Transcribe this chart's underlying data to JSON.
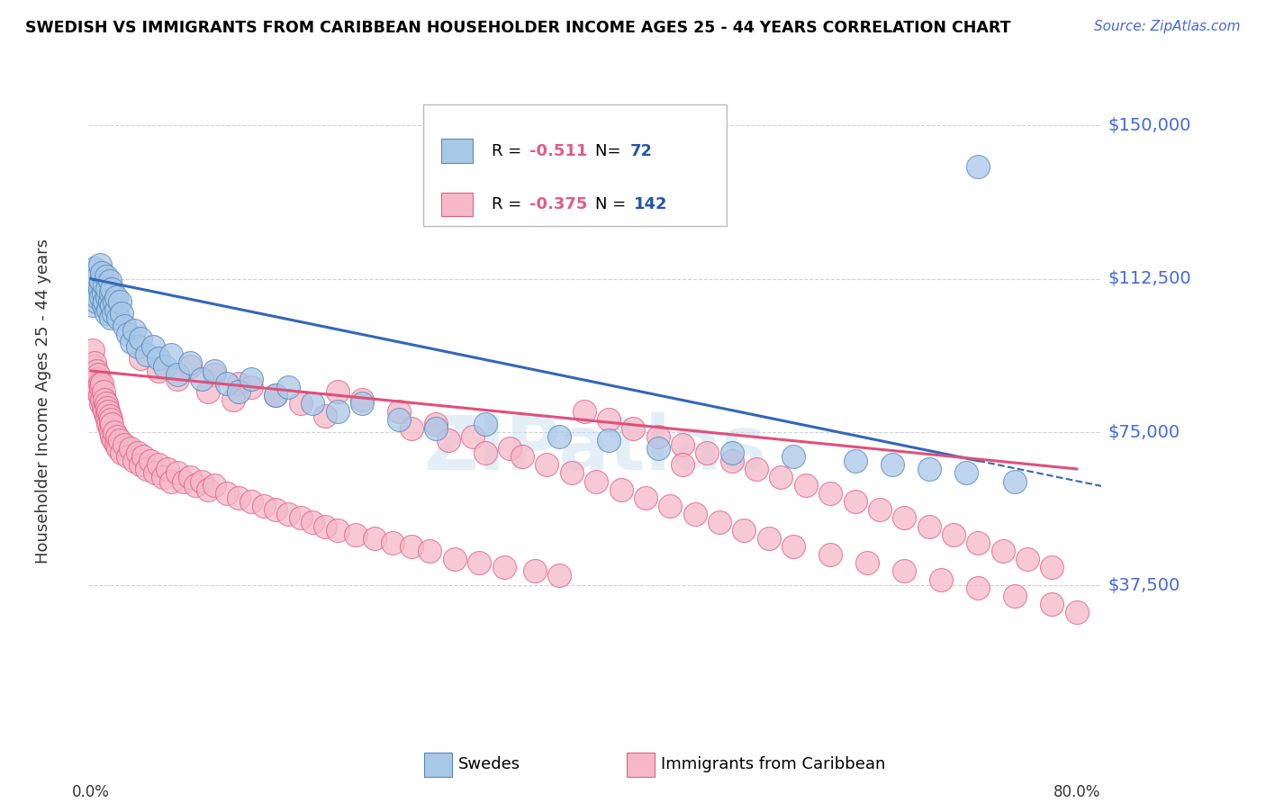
{
  "title": "SWEDISH VS IMMIGRANTS FROM CARIBBEAN HOUSEHOLDER INCOME AGES 25 - 44 YEARS CORRELATION CHART",
  "source": "Source: ZipAtlas.com",
  "ylabel": "Householder Income Ages 25 - 44 years",
  "yticks": [
    37500,
    75000,
    112500,
    150000
  ],
  "ytick_labels": [
    "$37,500",
    "$75,000",
    "$112,500",
    "$150,000"
  ],
  "ylim": [
    0,
    165000
  ],
  "xlim": [
    -0.002,
    0.82
  ],
  "xmin_pct": "0.0%",
  "xmax_pct": "80.0%",
  "swedes_color": "#a8c8e8",
  "swedes_edge_color": "#5588bb",
  "caribbean_color": "#f5b8c8",
  "caribbean_edge_color": "#e06080",
  "trend_swede_color": "#3366bb",
  "trend_caribbean_color": "#e0507a",
  "R_swede": "-0.511",
  "N_swede": "72",
  "R_caribbean": "-0.375",
  "N_caribbean": "142",
  "legend_R_color": "#e05a8a",
  "legend_N_color": "#2255aa",
  "grid_color": "#d0d0d0",
  "ytick_color": "#4169e1",
  "watermark": "ZIPatlas",
  "watermark_color": "#c8dff0",
  "swedes_x": [
    0.001,
    0.002,
    0.003,
    0.003,
    0.004,
    0.005,
    0.005,
    0.006,
    0.007,
    0.007,
    0.008,
    0.008,
    0.009,
    0.01,
    0.01,
    0.011,
    0.011,
    0.012,
    0.012,
    0.013,
    0.013,
    0.014,
    0.015,
    0.015,
    0.016,
    0.016,
    0.017,
    0.017,
    0.018,
    0.019,
    0.02,
    0.02,
    0.022,
    0.023,
    0.025,
    0.027,
    0.03,
    0.033,
    0.035,
    0.038,
    0.04,
    0.045,
    0.05,
    0.055,
    0.06,
    0.065,
    0.07,
    0.08,
    0.09,
    0.1,
    0.11,
    0.12,
    0.13,
    0.15,
    0.16,
    0.18,
    0.2,
    0.22,
    0.25,
    0.28,
    0.32,
    0.38,
    0.42,
    0.46,
    0.52,
    0.57,
    0.62,
    0.65,
    0.68,
    0.71,
    0.75,
    0.72
  ],
  "swedes_y": [
    106000,
    112000,
    109000,
    115000,
    107000,
    111000,
    108000,
    113000,
    110000,
    116000,
    108000,
    112000,
    114000,
    109000,
    106000,
    111000,
    107000,
    113000,
    104000,
    108000,
    110000,
    105000,
    112000,
    107000,
    109000,
    103000,
    106000,
    110000,
    104000,
    107000,
    105000,
    108000,
    103000,
    107000,
    104000,
    101000,
    99000,
    97000,
    100000,
    96000,
    98000,
    94000,
    96000,
    93000,
    91000,
    94000,
    89000,
    92000,
    88000,
    90000,
    87000,
    85000,
    88000,
    84000,
    86000,
    82000,
    80000,
    82000,
    78000,
    76000,
    77000,
    74000,
    73000,
    71000,
    70000,
    69000,
    68000,
    67000,
    66000,
    65000,
    63000,
    140000
  ],
  "caribbean_x": [
    0.001,
    0.002,
    0.003,
    0.003,
    0.004,
    0.004,
    0.005,
    0.005,
    0.006,
    0.006,
    0.007,
    0.007,
    0.008,
    0.008,
    0.009,
    0.009,
    0.01,
    0.01,
    0.011,
    0.011,
    0.012,
    0.012,
    0.013,
    0.013,
    0.014,
    0.014,
    0.015,
    0.015,
    0.016,
    0.016,
    0.017,
    0.017,
    0.018,
    0.019,
    0.02,
    0.021,
    0.022,
    0.023,
    0.025,
    0.027,
    0.03,
    0.032,
    0.035,
    0.038,
    0.04,
    0.042,
    0.045,
    0.048,
    0.052,
    0.055,
    0.058,
    0.062,
    0.065,
    0.07,
    0.075,
    0.08,
    0.085,
    0.09,
    0.095,
    0.1,
    0.11,
    0.12,
    0.13,
    0.14,
    0.15,
    0.16,
    0.17,
    0.18,
    0.19,
    0.2,
    0.215,
    0.23,
    0.245,
    0.26,
    0.275,
    0.295,
    0.315,
    0.335,
    0.36,
    0.38,
    0.4,
    0.42,
    0.44,
    0.46,
    0.48,
    0.5,
    0.52,
    0.54,
    0.56,
    0.58,
    0.6,
    0.62,
    0.64,
    0.66,
    0.68,
    0.7,
    0.72,
    0.74,
    0.76,
    0.78,
    0.2,
    0.22,
    0.25,
    0.28,
    0.31,
    0.34,
    0.12,
    0.15,
    0.17,
    0.19,
    0.35,
    0.37,
    0.39,
    0.41,
    0.43,
    0.45,
    0.47,
    0.49,
    0.51,
    0.53,
    0.55,
    0.57,
    0.6,
    0.63,
    0.66,
    0.69,
    0.72,
    0.75,
    0.78,
    0.8,
    0.26,
    0.29,
    0.32,
    0.48,
    0.08,
    0.1,
    0.13,
    0.04,
    0.055,
    0.07,
    0.095,
    0.115
  ],
  "caribbean_y": [
    95000,
    91000,
    88000,
    92000,
    87000,
    90000,
    85000,
    88000,
    86000,
    89000,
    84000,
    87000,
    82000,
    86000,
    83000,
    87000,
    81000,
    85000,
    80000,
    83000,
    79000,
    82000,
    78000,
    81000,
    77000,
    80000,
    76000,
    79000,
    75000,
    78000,
    74000,
    77000,
    73000,
    75000,
    72000,
    74000,
    71000,
    73000,
    70000,
    72000,
    69000,
    71000,
    68000,
    70000,
    67000,
    69000,
    66000,
    68000,
    65000,
    67000,
    64000,
    66000,
    63000,
    65000,
    63000,
    64000,
    62000,
    63000,
    61000,
    62000,
    60000,
    59000,
    58000,
    57000,
    56000,
    55000,
    54000,
    53000,
    52000,
    51000,
    50000,
    49000,
    48000,
    47000,
    46000,
    44000,
    43000,
    42000,
    41000,
    40000,
    80000,
    78000,
    76000,
    74000,
    72000,
    70000,
    68000,
    66000,
    64000,
    62000,
    60000,
    58000,
    56000,
    54000,
    52000,
    50000,
    48000,
    46000,
    44000,
    42000,
    85000,
    83000,
    80000,
    77000,
    74000,
    71000,
    87000,
    84000,
    82000,
    79000,
    69000,
    67000,
    65000,
    63000,
    61000,
    59000,
    57000,
    55000,
    53000,
    51000,
    49000,
    47000,
    45000,
    43000,
    41000,
    39000,
    37000,
    35000,
    33000,
    31000,
    76000,
    73000,
    70000,
    67000,
    91000,
    89000,
    86000,
    93000,
    90000,
    88000,
    85000,
    83000
  ]
}
